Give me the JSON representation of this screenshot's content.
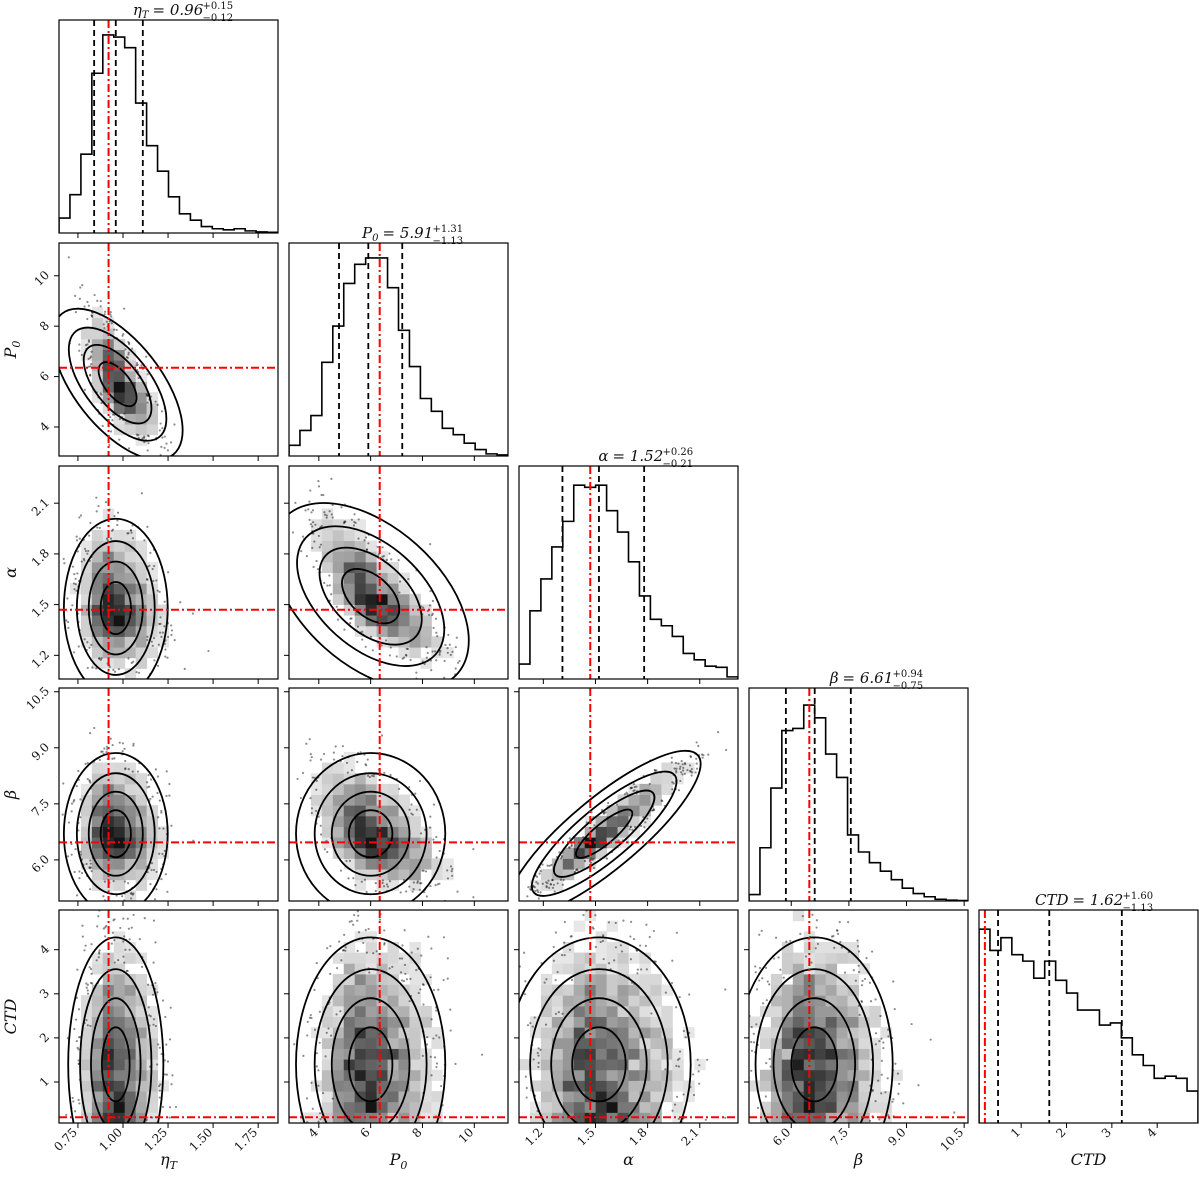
{
  "chart_data": {
    "type": "corner",
    "description": "Corner plot of posterior samples: 1D marginal histograms on the diagonal, 2D density (grayscale histogram + scatter + contours) below diagonal",
    "parameters": [
      {
        "key": "eta_T",
        "label": "ηT",
        "label_main": "η",
        "label_sub": "T",
        "title_value": "0.96",
        "title_plus": "+0.15",
        "title_minus": "−0.12",
        "median": 0.96,
        "q16": 0.84,
        "q84": 1.11,
        "truth": 0.92,
        "range": [
          0.645,
          1.86
        ],
        "ticks": [
          0.75,
          1.0,
          1.25,
          1.5,
          1.75
        ],
        "tick_labels": [
          "0.75",
          "1.00",
          "1.25",
          "1.50",
          "1.75"
        ],
        "hist": [
          0.07,
          0.18,
          0.37,
          0.75,
          0.93,
          0.92,
          0.87,
          0.61,
          0.41,
          0.29,
          0.17,
          0.09,
          0.06,
          0.03,
          0.02,
          0.015,
          0.02,
          0.01,
          0.005,
          0.003
        ]
      },
      {
        "key": "P0",
        "label": "P0",
        "label_main": "P",
        "label_sub": "0",
        "title_value": "5.91",
        "title_plus": "+1.31",
        "title_minus": "−1.13",
        "median": 5.91,
        "q16": 4.78,
        "q84": 7.22,
        "truth": 6.35,
        "range": [
          2.85,
          11.3
        ],
        "ticks": [
          4,
          6,
          8,
          10
        ],
        "tick_labels": [
          "4",
          "6",
          "8",
          "10"
        ],
        "hist": [
          0.05,
          0.12,
          0.19,
          0.44,
          0.61,
          0.81,
          0.9,
          0.93,
          0.93,
          0.79,
          0.59,
          0.42,
          0.27,
          0.21,
          0.13,
          0.1,
          0.06,
          0.03,
          0.01,
          0.005
        ]
      },
      {
        "key": "alpha",
        "label": "α",
        "label_main": "α",
        "label_sub": "",
        "title_value": "1.52",
        "title_plus": "+0.26",
        "title_minus": "−0.21",
        "median": 1.52,
        "q16": 1.31,
        "q84": 1.78,
        "truth": 1.47,
        "range": [
          1.06,
          2.32
        ],
        "ticks": [
          1.2,
          1.5,
          1.8,
          2.1
        ],
        "tick_labels": [
          "1.2",
          "1.5",
          "1.8",
          "2.1"
        ],
        "hist": [
          0.07,
          0.32,
          0.47,
          0.62,
          0.74,
          0.91,
          0.9,
          0.91,
          0.79,
          0.69,
          0.55,
          0.39,
          0.28,
          0.25,
          0.2,
          0.12,
          0.09,
          0.06,
          0.055,
          0.01
        ]
      },
      {
        "key": "beta",
        "label": "β",
        "label_main": "β",
        "label_sub": "",
        "title_value": "6.61",
        "title_plus": "+0.94",
        "title_minus": "−0.75",
        "median": 6.61,
        "q16": 5.86,
        "q84": 7.55,
        "truth": 6.47,
        "range": [
          4.9,
          10.6
        ],
        "ticks": [
          6.0,
          7.5,
          9.0,
          10.5
        ],
        "tick_labels": [
          "6.0",
          "7.5",
          "9.0",
          "10.5"
        ],
        "hist": [
          0.03,
          0.25,
          0.53,
          0.8,
          0.81,
          0.92,
          0.86,
          0.69,
          0.58,
          0.31,
          0.23,
          0.18,
          0.14,
          0.1,
          0.06,
          0.035,
          0.02,
          0.008,
          0.004,
          0.002
        ]
      },
      {
        "key": "CTD",
        "label": "CTD",
        "label_main": "CTD",
        "label_sub": "",
        "title_value": "1.62",
        "title_plus": "+1.60",
        "title_minus": "−1.13",
        "median": 1.62,
        "q16": 0.49,
        "q84": 3.22,
        "truth": 0.2,
        "range": [
          0.07,
          4.9
        ],
        "ticks": [
          1,
          2,
          3,
          4
        ],
        "tick_labels": [
          "1",
          "2",
          "3",
          "4"
        ],
        "hist": [
          0.91,
          0.81,
          0.87,
          0.79,
          0.76,
          0.68,
          0.76,
          0.67,
          0.61,
          0.53,
          0.53,
          0.46,
          0.47,
          0.4,
          0.32,
          0.27,
          0.21,
          0.22,
          0.21,
          0.15
        ]
      }
    ],
    "pairs": [
      {
        "x": "eta_T",
        "y": "P0",
        "mx": 0.97,
        "my": 5.7,
        "sx": 0.1,
        "sy": 1.3,
        "rho": -0.7
      },
      {
        "x": "eta_T",
        "y": "alpha",
        "mx": 0.96,
        "my": 1.48,
        "sx": 0.12,
        "sy": 0.22,
        "rho": -0.15
      },
      {
        "x": "P0",
        "y": "alpha",
        "mx": 6.0,
        "my": 1.55,
        "sx": 1.2,
        "sy": 0.22,
        "rho": -0.75
      },
      {
        "x": "eta_T",
        "y": "beta",
        "mx": 0.96,
        "my": 6.7,
        "sx": 0.12,
        "sy": 0.9,
        "rho": -0.1
      },
      {
        "x": "P0",
        "y": "beta",
        "mx": 6.0,
        "my": 6.7,
        "sx": 1.2,
        "sy": 0.9,
        "rho": -0.5
      },
      {
        "x": "alpha",
        "y": "beta",
        "mx": 1.55,
        "my": 6.7,
        "sx": 0.22,
        "sy": 0.9,
        "rho": 0.95
      },
      {
        "x": "eta_T",
        "y": "CTD",
        "mx": 0.96,
        "my": 1.4,
        "sx": 0.11,
        "sy": 1.2,
        "rho": 0.0
      },
      {
        "x": "P0",
        "y": "CTD",
        "mx": 6.0,
        "my": 1.4,
        "sx": 1.2,
        "sy": 1.2,
        "rho": 0.0
      },
      {
        "x": "alpha",
        "y": "CTD",
        "mx": 1.52,
        "my": 1.4,
        "sx": 0.22,
        "sy": 1.2,
        "rho": 0.0
      },
      {
        "x": "beta",
        "y": "CTD",
        "mx": 6.6,
        "my": 1.4,
        "sx": 0.85,
        "sy": 1.2,
        "rho": 0.0
      }
    ],
    "truth_line_style": {
      "color": "#ff0000",
      "dash": "dash-dot"
    },
    "quantile_line_style": {
      "color": "#000000",
      "dash": "dashed"
    },
    "grid": false,
    "legend": null
  },
  "colors": {
    "truth": "#ff0000",
    "ink": "#000000",
    "bg": "#ffffff"
  }
}
